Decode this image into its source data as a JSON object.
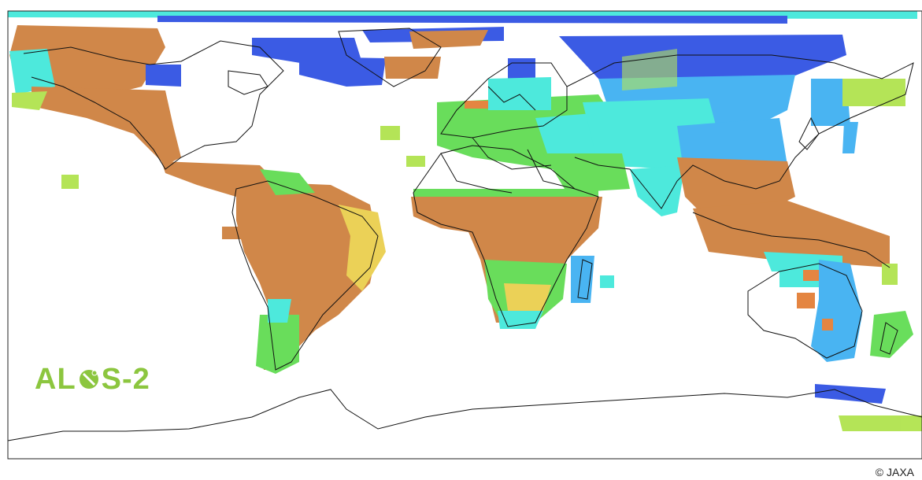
{
  "logo": {
    "prefix": "AL",
    "suffix": "S-2",
    "color": "#8cc63f",
    "icon": "globe-satellite-icon"
  },
  "credit": "© JAXA",
  "palette": {
    "ocean": "#ffffff",
    "coastline": "#111111",
    "forest": "#c8732a",
    "mixed": "#e8c93a",
    "yellowgreen": "#a8e03a",
    "green": "#4fd83f",
    "cyan": "#2ee6d6",
    "lightblue": "#2aa8f0",
    "blue": "#1a3fe0",
    "darkblue": "#1230c8"
  }
}
